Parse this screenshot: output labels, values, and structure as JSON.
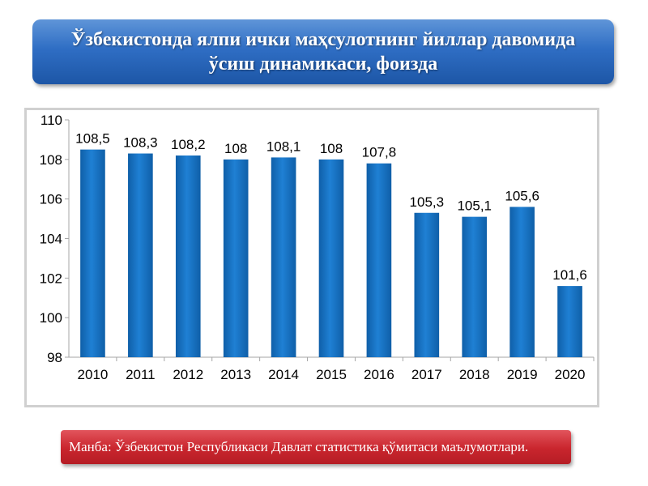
{
  "header": {
    "title": "Ўзбекистонда ялпи ички маҳсулотнинг йиллар давомида\nўсиш динамикаси, фоизда"
  },
  "footer": {
    "source": "Манба: Ўзбекистон Республикаси Давлат статистика қўмитаси маълумотлари."
  },
  "colors": {
    "bar": "#1f80d4",
    "bar_dark": "#0f5fa8",
    "title_bg": "#2f6ec4",
    "source_bg": "#c9252d"
  },
  "chart_data": {
    "type": "bar",
    "categories": [
      "2010",
      "2011",
      "2012",
      "2013",
      "2014",
      "2015",
      "2016",
      "2017",
      "2018",
      "2019",
      "2020"
    ],
    "values": [
      108.5,
      108.3,
      108.2,
      108,
      108.1,
      108,
      107.8,
      105.3,
      105.1,
      105.6,
      101.6
    ],
    "data_labels": [
      "108,5",
      "108,3",
      "108,2",
      "108",
      "108,1",
      "108",
      "107,8",
      "105,3",
      "105,1",
      "105,6",
      "101,6"
    ],
    "ylim": [
      98,
      110
    ],
    "yticks": [
      98,
      100,
      102,
      104,
      106,
      108,
      110
    ],
    "grid": false,
    "legend": "none"
  }
}
